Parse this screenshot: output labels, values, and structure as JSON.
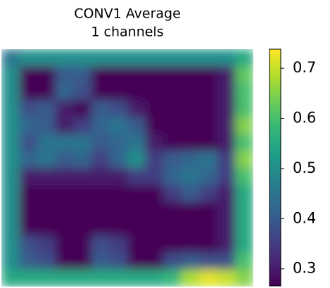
{
  "chart_data": {
    "type": "heatmap",
    "title": "CONV1 Average",
    "subtitle": "1 channels",
    "colormap": "viridis",
    "clim": [
      0.266,
      0.738
    ],
    "cticks": [
      0.3,
      0.4,
      0.5,
      0.6,
      0.7
    ],
    "z": [
      [
        0.45,
        0.5,
        0.5,
        0.5,
        0.5,
        0.5,
        0.5,
        0.5,
        0.5,
        0.5,
        0.5,
        0.5,
        0.5,
        0.55
      ],
      [
        0.5,
        0.27,
        0.27,
        0.4,
        0.4,
        0.27,
        0.27,
        0.27,
        0.27,
        0.27,
        0.27,
        0.27,
        0.3,
        0.62
      ],
      [
        0.5,
        0.27,
        0.27,
        0.42,
        0.38,
        0.27,
        0.27,
        0.27,
        0.27,
        0.27,
        0.27,
        0.27,
        0.3,
        0.6
      ],
      [
        0.5,
        0.38,
        0.4,
        0.3,
        0.27,
        0.4,
        0.38,
        0.3,
        0.27,
        0.27,
        0.27,
        0.27,
        0.3,
        0.6
      ],
      [
        0.5,
        0.42,
        0.4,
        0.3,
        0.35,
        0.42,
        0.45,
        0.4,
        0.27,
        0.27,
        0.27,
        0.27,
        0.3,
        0.65
      ],
      [
        0.5,
        0.38,
        0.45,
        0.45,
        0.45,
        0.4,
        0.42,
        0.45,
        0.3,
        0.27,
        0.27,
        0.27,
        0.3,
        0.6
      ],
      [
        0.5,
        0.42,
        0.45,
        0.4,
        0.42,
        0.35,
        0.42,
        0.5,
        0.35,
        0.4,
        0.42,
        0.45,
        0.35,
        0.65
      ],
      [
        0.5,
        0.3,
        0.3,
        0.3,
        0.3,
        0.3,
        0.3,
        0.35,
        0.35,
        0.42,
        0.45,
        0.42,
        0.35,
        0.6
      ],
      [
        0.5,
        0.27,
        0.27,
        0.27,
        0.27,
        0.27,
        0.27,
        0.27,
        0.27,
        0.35,
        0.4,
        0.35,
        0.3,
        0.55
      ],
      [
        0.5,
        0.27,
        0.27,
        0.27,
        0.27,
        0.27,
        0.27,
        0.27,
        0.27,
        0.27,
        0.27,
        0.27,
        0.3,
        0.55
      ],
      [
        0.5,
        0.27,
        0.27,
        0.27,
        0.27,
        0.27,
        0.27,
        0.27,
        0.27,
        0.27,
        0.27,
        0.27,
        0.3,
        0.55
      ],
      [
        0.5,
        0.38,
        0.35,
        0.27,
        0.27,
        0.38,
        0.35,
        0.27,
        0.27,
        0.27,
        0.27,
        0.27,
        0.3,
        0.55
      ],
      [
        0.5,
        0.4,
        0.38,
        0.27,
        0.27,
        0.4,
        0.38,
        0.27,
        0.27,
        0.38,
        0.4,
        0.38,
        0.38,
        0.6
      ],
      [
        0.55,
        0.55,
        0.55,
        0.55,
        0.55,
        0.55,
        0.55,
        0.55,
        0.55,
        0.58,
        0.68,
        0.72,
        0.7,
        0.65
      ]
    ]
  }
}
